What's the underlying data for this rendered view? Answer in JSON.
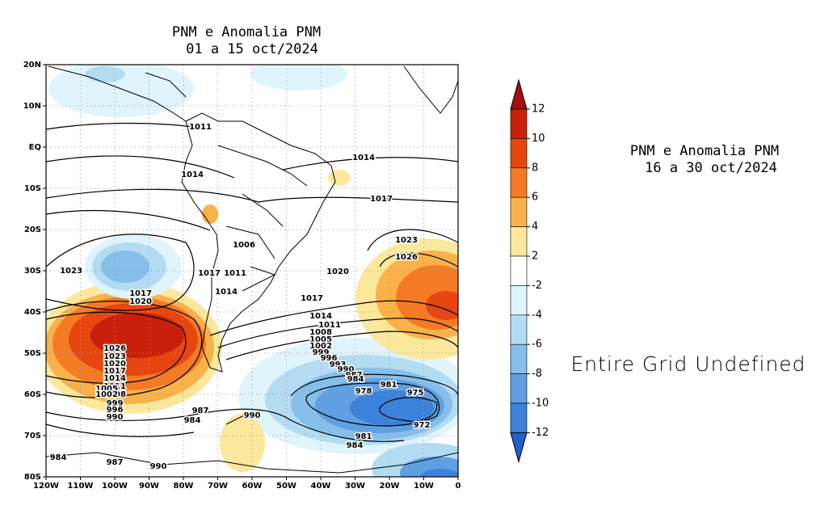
{
  "left_panel": {
    "title": [
      "PNM e Anomalia PNM",
      "01 a 15 oct/2024"
    ],
    "xlim": [
      -120,
      0
    ],
    "ylim": [
      -80,
      20
    ],
    "lonticks": [
      {
        "value": -120,
        "label": "120W"
      },
      {
        "value": -110,
        "label": "110W"
      },
      {
        "value": -100,
        "label": "100W"
      },
      {
        "value": -90,
        "label": "90W"
      },
      {
        "value": -80,
        "label": "80W"
      },
      {
        "value": -70,
        "label": "70W"
      },
      {
        "value": -60,
        "label": "60W"
      },
      {
        "value": -50,
        "label": "50W"
      },
      {
        "value": -40,
        "label": "40W"
      },
      {
        "value": -30,
        "label": "30W"
      },
      {
        "value": -20,
        "label": "20W"
      },
      {
        "value": -10,
        "label": "10W"
      },
      0
    ],
    "latticks": [
      {
        "value": -80,
        "label": "80S"
      },
      {
        "value": -70,
        "label": "70S"
      },
      {
        "value": -60,
        "label": "60S"
      },
      {
        "value": -50,
        "label": "50S"
      },
      {
        "value": -40,
        "label": "40S"
      },
      {
        "value": -30,
        "label": "30S"
      },
      {
        "value": -20,
        "label": "20S"
      },
      {
        "value": -10,
        "label": "10S"
      },
      {
        "value": 0,
        "label": "EQ"
      },
      {
        "value": 10,
        "label": "10N"
      },
      {
        "value": 20,
        "label": "20N"
      }
    ],
    "contour_labels": [
      1011,
      1014,
      1014,
      1017,
      1023,
      1026,
      1020,
      1023,
      1017,
      1020,
      1006,
      1017,
      1011,
      1014,
      1017,
      1014,
      1011,
      1008,
      1005,
      1002,
      999,
      996,
      993,
      990,
      987,
      984,
      981,
      978,
      975,
      972,
      984,
      987,
      990,
      981,
      984,
      984,
      987,
      990,
      1026,
      1023,
      1020,
      1017,
      1014,
      1011,
      1008,
      1005,
      1002,
      999,
      996,
      993,
      990
    ]
  },
  "colorbar": {
    "ticks": [
      12,
      10,
      8,
      6,
      4,
      2,
      -2,
      -4,
      -6,
      -8,
      -10,
      -12
    ],
    "colors": [
      "#a50f0f",
      "#c8200a",
      "#e6460f",
      "#f47a23",
      "#f8b249",
      "#fbe89c",
      "#ffffff",
      "#dff4fb",
      "#b3dcf3",
      "#85bfea",
      "#5f9fe2",
      "#3d82da",
      "#1f5fce"
    ]
  },
  "right_panel": {
    "title": [
      "PNM e Anomalia PNM",
      "16 a 30 oct/2024"
    ],
    "message": "Entire Grid Undefined"
  }
}
